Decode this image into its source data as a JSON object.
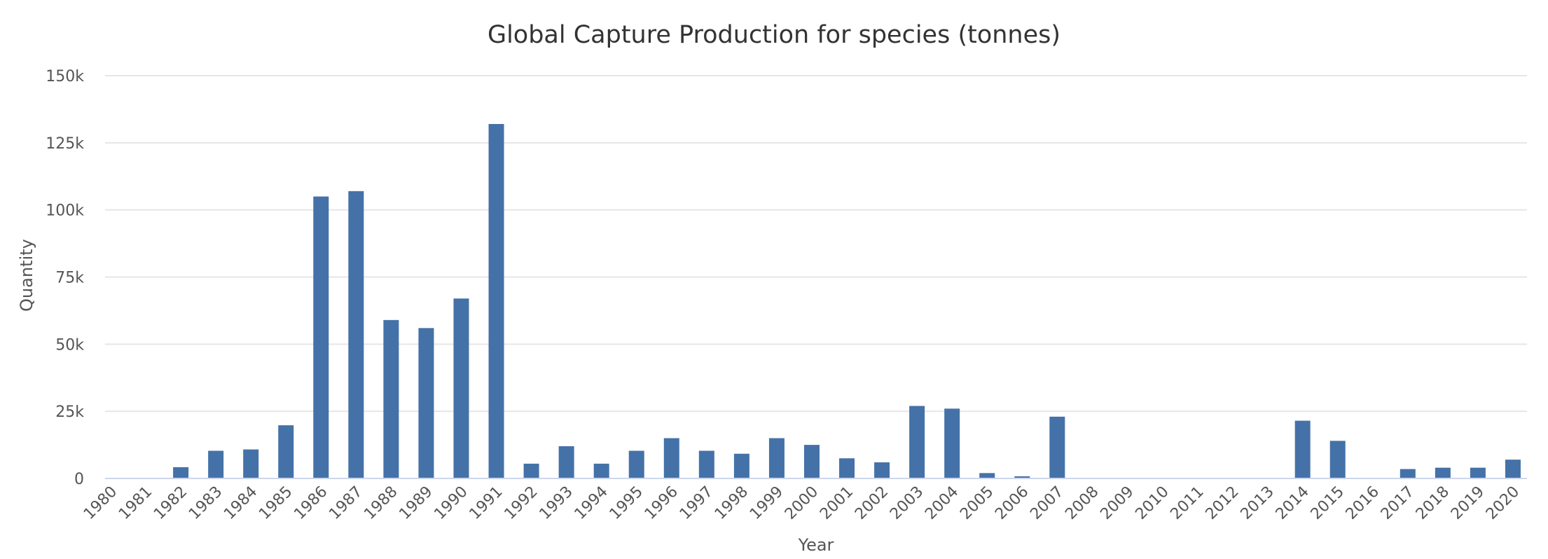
{
  "chart_data": {
    "type": "bar",
    "title": "Global Capture Production for species (tonnes)",
    "xlabel": "Year",
    "ylabel": "Quantity",
    "ylim": [
      0,
      150000
    ],
    "yticks": [
      {
        "value": 0,
        "label": "0"
      },
      {
        "value": 25000,
        "label": "25k"
      },
      {
        "value": 50000,
        "label": "50k"
      },
      {
        "value": 75000,
        "label": "75k"
      },
      {
        "value": 100000,
        "label": "100k"
      },
      {
        "value": 125000,
        "label": "125k"
      },
      {
        "value": 150000,
        "label": "150k"
      }
    ],
    "grid": true,
    "legend": "none",
    "color": "#4472a8",
    "categories": [
      "1980",
      "1981",
      "1982",
      "1983",
      "1984",
      "1985",
      "1986",
      "1987",
      "1988",
      "1989",
      "1990",
      "1991",
      "1992",
      "1993",
      "1994",
      "1995",
      "1996",
      "1997",
      "1998",
      "1999",
      "2000",
      "2001",
      "2002",
      "2003",
      "2004",
      "2005",
      "2006",
      "2007",
      "2008",
      "2009",
      "2010",
      "2011",
      "2012",
      "2013",
      "2014",
      "2015",
      "2016",
      "2017",
      "2018",
      "2019",
      "2020"
    ],
    "values": [
      0,
      0,
      4200,
      10300,
      10800,
      19800,
      105000,
      107000,
      59000,
      56000,
      67000,
      132000,
      5500,
      12000,
      5500,
      10300,
      15000,
      10300,
      9200,
      15000,
      12500,
      7500,
      6000,
      27000,
      26000,
      2000,
      800,
      23000,
      0,
      0,
      0,
      0,
      0,
      0,
      21500,
      14000,
      0,
      3500,
      4000,
      4000,
      7000
    ]
  }
}
